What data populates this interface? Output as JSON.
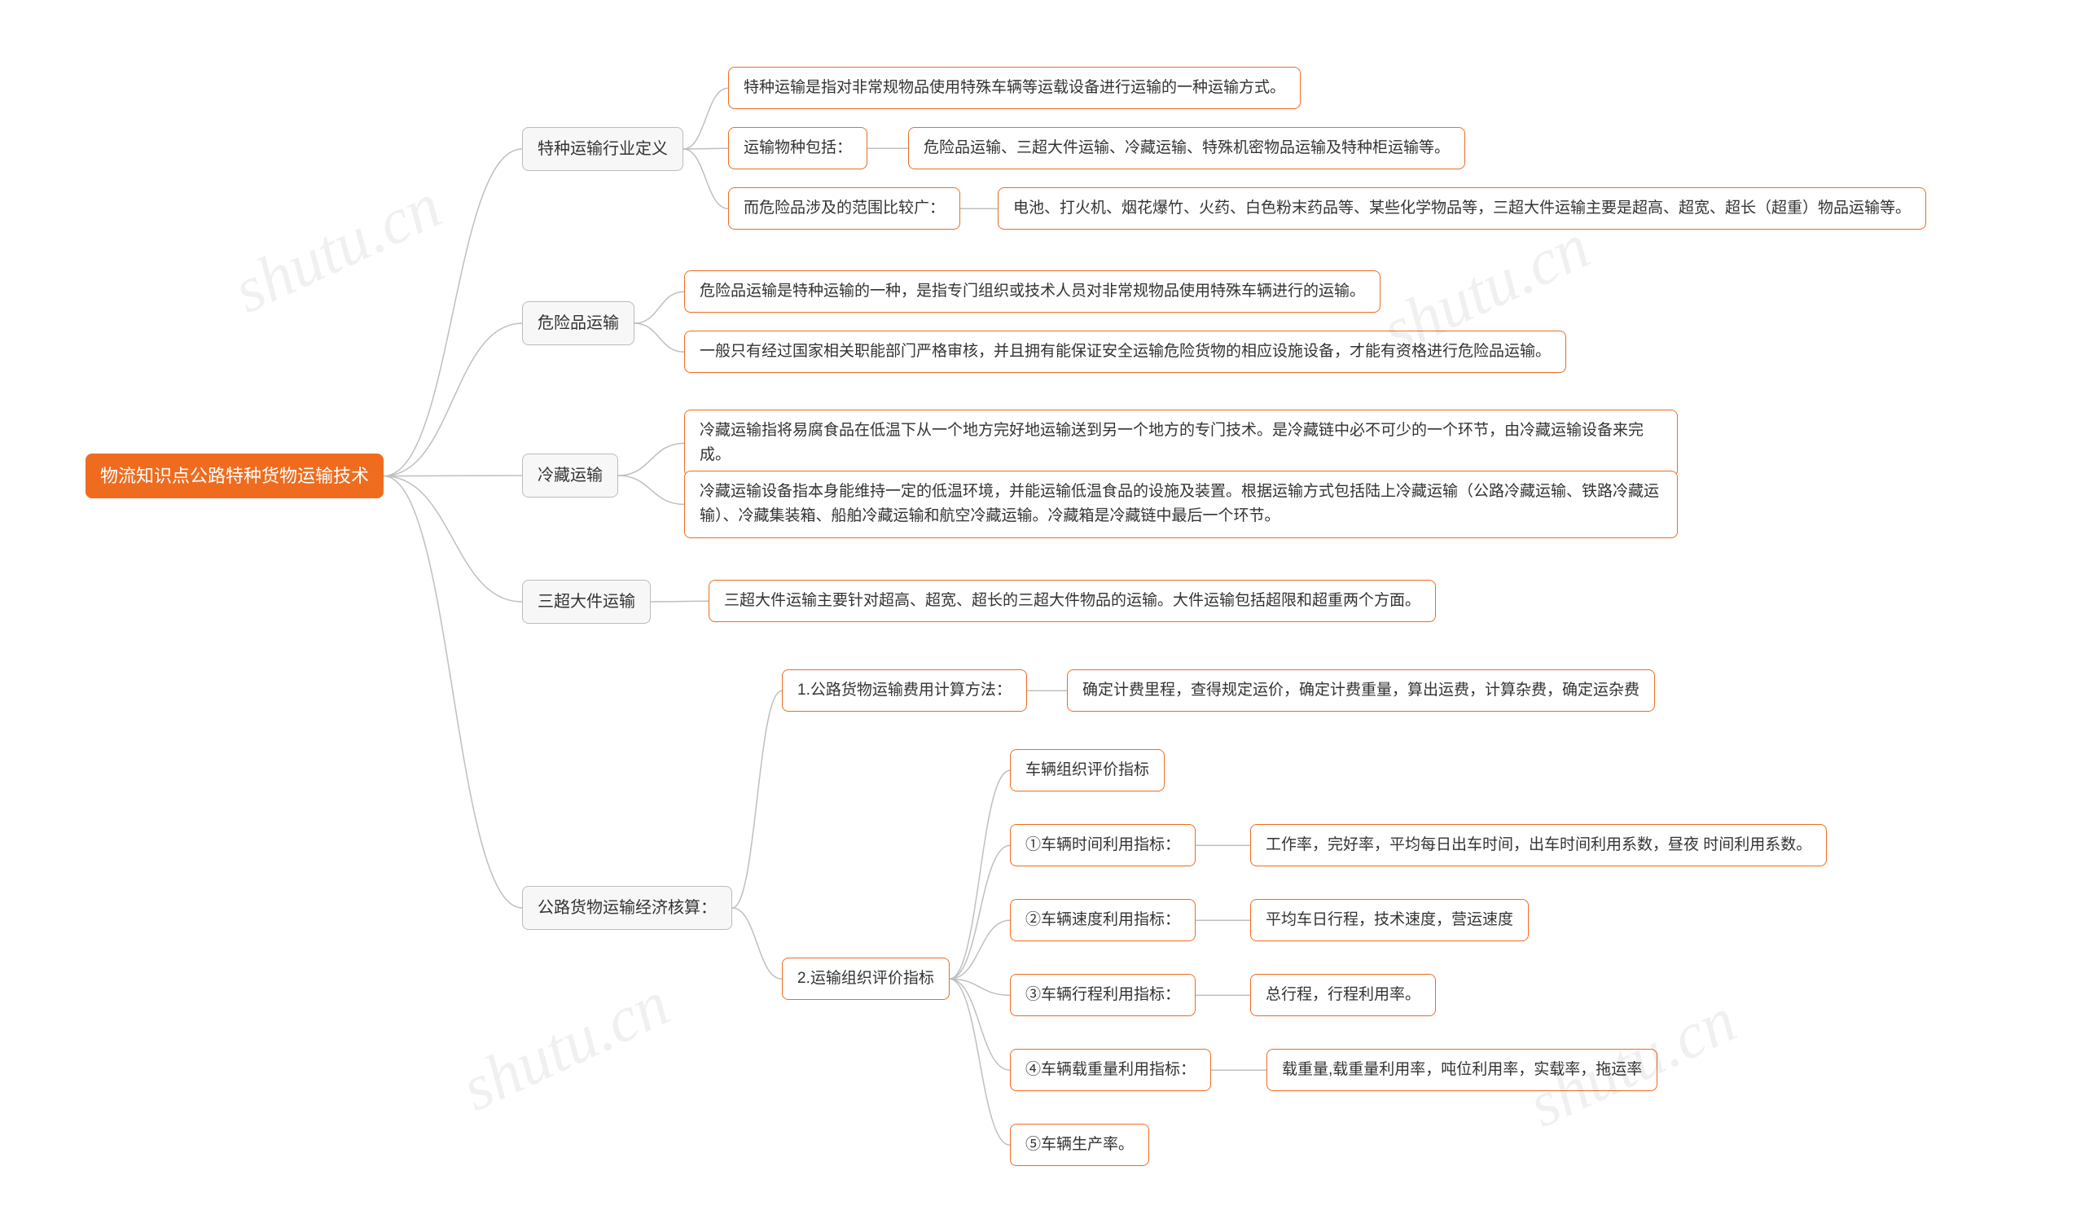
{
  "colors": {
    "root_bg": "#ef6c1f",
    "root_fg": "#ffffff",
    "lvl_bg": "#f7f7f7",
    "lvl_border": "#bbbbbb",
    "lvl_fg": "#333333",
    "leaf_bg": "#ffffff",
    "leaf_border": "#ef6c1f",
    "leaf_fg": "#333333",
    "connector": "#bfbfbf",
    "background": "#ffffff",
    "watermark": "rgba(0,0,0,0.06)"
  },
  "watermark": "shutu.cn",
  "root": {
    "label": "物流知识点公路特种货物运输技术"
  },
  "branches": {
    "b1": {
      "label": "特种运输行业定义",
      "children": {
        "b1c1": {
          "label": "特种运输是指对非常规物品使用特殊车辆等运载设备进行运输的一种运输方式。"
        },
        "b1c2": {
          "label": "运输物种包括：",
          "child": {
            "label": "危险品运输、三超大件运输、冷藏运输、特殊机密物品运输及特种柜运输等。"
          }
        },
        "b1c3": {
          "label": "而危险品涉及的范围比较广：",
          "child": {
            "label": "电池、打火机、烟花爆竹、火药、白色粉末药品等、某些化学物品等，三超大件运输主要是超高、超宽、超长（超重）物品运输等。"
          }
        }
      }
    },
    "b2": {
      "label": "危险品运输",
      "children": {
        "b2c1": {
          "label": "危险品运输是特种运输的一种，是指专门组织或技术人员对非常规物品使用特殊车辆进行的运输。"
        },
        "b2c2": {
          "label": "一般只有经过国家相关职能部门严格审核，并且拥有能保证安全运输危险货物的相应设施设备，才能有资格进行危险品运输。"
        }
      }
    },
    "b3": {
      "label": "冷藏运输",
      "children": {
        "b3c1": {
          "label": "冷藏运输指将易腐食品在低温下从一个地方完好地运输送到另一个地方的专门技术。是冷藏链中必不可少的一个环节，由冷藏运输设备来完成。"
        },
        "b3c2": {
          "label": "冷藏运输设备指本身能维持一定的低温环境，并能运输低温食品的设施及装置。根据运输方式包括陆上冷藏运输（公路冷藏运输、铁路冷藏运输）、冷藏集装箱、船舶冷藏运输和航空冷藏运输。冷藏箱是冷藏链中最后一个环节。"
        }
      }
    },
    "b4": {
      "label": "三超大件运输",
      "child": {
        "label": "三超大件运输主要针对超高、超宽、超长的三超大件物品的运输。大件运输包括超限和超重两个方面。"
      }
    },
    "b5": {
      "label": "公路货物运输经济核算：",
      "children": {
        "b5c1": {
          "label": "1.公路货物运输费用计算方法：",
          "child": {
            "label": "确定计费里程，查得规定运价，确定计费重量，算出运费，计算杂费，确定运杂费"
          }
        },
        "b5c2": {
          "label": "2.运输组织评价指标",
          "children": {
            "i0": {
              "label": "车辆组织评价指标"
            },
            "i1": {
              "label": "①车辆时间利用指标：",
              "child": {
                "label": "工作率，完好率，平均每日出车时间，出车时间利用系数，昼夜 时间利用系数。"
              }
            },
            "i2": {
              "label": "②车辆速度利用指标：",
              "child": {
                "label": "平均车日行程，技术速度，营运速度"
              }
            },
            "i3": {
              "label": "③车辆行程利用指标：",
              "child": {
                "label": "总行程，行程利用率。"
              }
            },
            "i4": {
              "label": "④车辆载重量利用指标：",
              "child": {
                "label": "载重量,载重量利用率，吨位利用率，实载率，拖运率"
              }
            },
            "i5": {
              "label": "⑤车辆生产率。"
            }
          }
        }
      }
    }
  }
}
